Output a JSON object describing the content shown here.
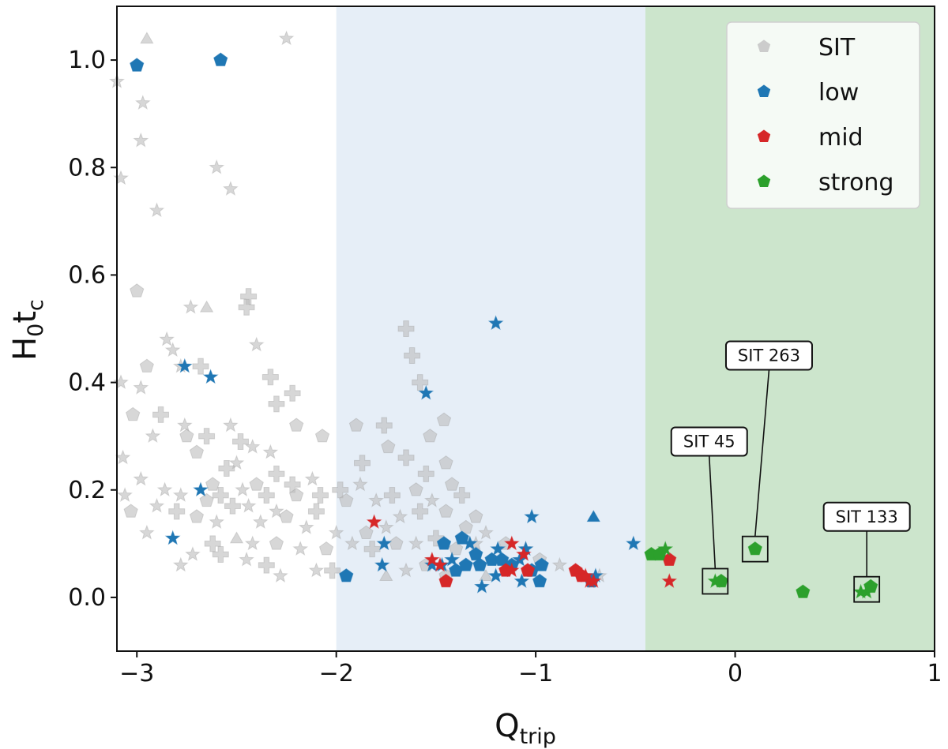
{
  "chart_data": {
    "type": "scatter",
    "xlabel": "Q",
    "xlabel_sub": "trip",
    "ylabel_main": "H",
    "ylabel_sub1": "0",
    "ylabel_mid": "t",
    "ylabel_sub2": "c",
    "xlim": [
      -3.1,
      1.0
    ],
    "ylim": [
      -0.1,
      1.1
    ],
    "x_ticks": [
      -3,
      -2,
      -1,
      0,
      1
    ],
    "x_tick_labels": [
      "−3",
      "−2",
      "−1",
      "0",
      "1"
    ],
    "y_ticks": [
      0.0,
      0.2,
      0.4,
      0.6,
      0.8,
      1.0
    ],
    "y_tick_labels": [
      "0.0",
      "0.2",
      "0.4",
      "0.6",
      "0.8",
      "1.0"
    ],
    "regions": [
      {
        "name": "low-region",
        "x_from": -2.0,
        "x_to": -0.45,
        "color": "#e6eef7"
      },
      {
        "name": "strong-region",
        "x_from": -0.45,
        "x_to": 1.0,
        "color": "#cce5cc"
      }
    ],
    "legend": {
      "position": "top-right",
      "entries": [
        {
          "label": "SIT",
          "color": "#cccccc"
        },
        {
          "label": "low",
          "color": "#1f77b4"
        },
        {
          "label": "mid",
          "color": "#d62728"
        },
        {
          "label": "strong",
          "color": "#2ca02c"
        }
      ]
    },
    "series": [
      {
        "name": "SIT",
        "color": "#bdbdbd",
        "opacity": 0.6,
        "points": [
          [
            -2.95,
            1.04,
            "triangle"
          ],
          [
            -2.25,
            1.04,
            "star"
          ],
          [
            -3.1,
            0.96,
            "star"
          ],
          [
            -2.97,
            0.92,
            "star"
          ],
          [
            -2.98,
            0.85,
            "star"
          ],
          [
            -2.6,
            0.8,
            "star"
          ],
          [
            -3.08,
            0.78,
            "star"
          ],
          [
            -2.53,
            0.76,
            "star"
          ],
          [
            -2.9,
            0.72,
            "star"
          ],
          [
            -3.0,
            0.57,
            "pentagon"
          ],
          [
            -2.65,
            0.54,
            "triangle"
          ],
          [
            -2.73,
            0.54,
            "star"
          ],
          [
            -2.44,
            0.56,
            "plus"
          ],
          [
            -2.45,
            0.54,
            "plus"
          ],
          [
            -2.4,
            0.47,
            "star"
          ],
          [
            -2.85,
            0.48,
            "star"
          ],
          [
            -2.82,
            0.46,
            "star"
          ],
          [
            -2.78,
            0.43,
            "star"
          ],
          [
            -2.95,
            0.43,
            "pentagon"
          ],
          [
            -2.68,
            0.43,
            "plus"
          ],
          [
            -2.33,
            0.41,
            "plus"
          ],
          [
            -3.08,
            0.4,
            "star"
          ],
          [
            -2.98,
            0.39,
            "star"
          ],
          [
            -2.22,
            0.38,
            "plus"
          ],
          [
            -2.3,
            0.36,
            "plus"
          ],
          [
            -3.02,
            0.34,
            "pentagon"
          ],
          [
            -2.88,
            0.34,
            "plus"
          ],
          [
            -2.76,
            0.32,
            "star"
          ],
          [
            -2.75,
            0.3,
            "pentagon"
          ],
          [
            -2.2,
            0.32,
            "pentagon"
          ],
          [
            -2.53,
            0.32,
            "star"
          ],
          [
            -2.65,
            0.3,
            "plus"
          ],
          [
            -2.92,
            0.3,
            "star"
          ],
          [
            -2.48,
            0.29,
            "plus"
          ],
          [
            -2.07,
            0.3,
            "pentagon"
          ],
          [
            -2.42,
            0.28,
            "star"
          ],
          [
            -2.33,
            0.27,
            "star"
          ],
          [
            -2.7,
            0.27,
            "pentagon"
          ],
          [
            -3.07,
            0.26,
            "star"
          ],
          [
            -2.5,
            0.25,
            "star"
          ],
          [
            -2.55,
            0.24,
            "plus"
          ],
          [
            -2.3,
            0.23,
            "plus"
          ],
          [
            -2.12,
            0.22,
            "star"
          ],
          [
            -2.98,
            0.22,
            "star"
          ],
          [
            -2.62,
            0.21,
            "pentagon"
          ],
          [
            -2.4,
            0.21,
            "pentagon"
          ],
          [
            -2.22,
            0.21,
            "plus"
          ],
          [
            -2.86,
            0.2,
            "star"
          ],
          [
            -3.06,
            0.19,
            "star"
          ],
          [
            -2.78,
            0.19,
            "star"
          ],
          [
            -2.58,
            0.19,
            "plus"
          ],
          [
            -2.47,
            0.2,
            "star"
          ],
          [
            -2.35,
            0.19,
            "plus"
          ],
          [
            -2.2,
            0.19,
            "pentagon"
          ],
          [
            -2.08,
            0.19,
            "plus"
          ],
          [
            -2.65,
            0.18,
            "pentagon"
          ],
          [
            -2.52,
            0.17,
            "plus"
          ],
          [
            -2.44,
            0.17,
            "star"
          ],
          [
            -2.3,
            0.16,
            "star"
          ],
          [
            -2.1,
            0.16,
            "plus"
          ],
          [
            -3.03,
            0.16,
            "pentagon"
          ],
          [
            -2.9,
            0.17,
            "star"
          ],
          [
            -2.8,
            0.16,
            "plus"
          ],
          [
            -2.7,
            0.15,
            "pentagon"
          ],
          [
            -2.6,
            0.14,
            "star"
          ],
          [
            -2.38,
            0.14,
            "star"
          ],
          [
            -2.25,
            0.15,
            "pentagon"
          ],
          [
            -2.15,
            0.13,
            "star"
          ],
          [
            -2.0,
            0.12,
            "star"
          ],
          [
            -2.95,
            0.12,
            "star"
          ],
          [
            -2.5,
            0.11,
            "triangle"
          ],
          [
            -2.62,
            0.1,
            "plus"
          ],
          [
            -2.42,
            0.1,
            "star"
          ],
          [
            -2.3,
            0.1,
            "pentagon"
          ],
          [
            -2.18,
            0.09,
            "star"
          ],
          [
            -2.05,
            0.09,
            "pentagon"
          ],
          [
            -2.72,
            0.08,
            "star"
          ],
          [
            -2.58,
            0.08,
            "plus"
          ],
          [
            -2.45,
            0.07,
            "star"
          ],
          [
            -2.35,
            0.06,
            "plus"
          ],
          [
            -2.1,
            0.05,
            "star"
          ],
          [
            -2.02,
            0.05,
            "plus"
          ],
          [
            -2.28,
            0.04,
            "star"
          ],
          [
            -2.78,
            0.06,
            "star"
          ],
          [
            -1.98,
            0.2,
            "plus"
          ],
          [
            -1.88,
            0.21,
            "star"
          ],
          [
            -1.95,
            0.18,
            "pentagon"
          ],
          [
            -1.8,
            0.18,
            "star"
          ],
          [
            -1.72,
            0.19,
            "plus"
          ],
          [
            -1.6,
            0.2,
            "pentagon"
          ],
          [
            -1.52,
            0.18,
            "star"
          ],
          [
            -1.42,
            0.21,
            "pentagon"
          ],
          [
            -1.45,
            0.16,
            "pentagon"
          ],
          [
            -1.58,
            0.16,
            "plus"
          ],
          [
            -1.68,
            0.15,
            "star"
          ],
          [
            -1.75,
            0.13,
            "star"
          ],
          [
            -1.85,
            0.12,
            "pentagon"
          ],
          [
            -1.92,
            0.1,
            "star"
          ],
          [
            -1.82,
            0.09,
            "plus"
          ],
          [
            -1.7,
            0.1,
            "pentagon"
          ],
          [
            -1.6,
            0.1,
            "star"
          ],
          [
            -1.5,
            0.11,
            "plus"
          ],
          [
            -1.4,
            0.09,
            "pentagon"
          ],
          [
            -1.3,
            0.1,
            "star"
          ],
          [
            -1.35,
            0.13,
            "pentagon"
          ],
          [
            -1.25,
            0.12,
            "star"
          ],
          [
            -1.15,
            0.1,
            "pentagon"
          ],
          [
            -1.05,
            0.09,
            "star"
          ],
          [
            -0.98,
            0.07,
            "pentagon"
          ],
          [
            -0.88,
            0.06,
            "star"
          ],
          [
            -1.55,
            0.06,
            "pentagon"
          ],
          [
            -1.65,
            0.05,
            "star"
          ],
          [
            -1.75,
            0.04,
            "triangle"
          ],
          [
            -1.45,
            0.04,
            "pentagon"
          ],
          [
            -1.25,
            0.04,
            "triangle"
          ],
          [
            -1.65,
            0.5,
            "plus"
          ],
          [
            -1.62,
            0.45,
            "plus"
          ],
          [
            -1.58,
            0.4,
            "plus"
          ],
          [
            -1.74,
            0.28,
            "pentagon"
          ],
          [
            -1.53,
            0.3,
            "pentagon"
          ],
          [
            -1.45,
            0.25,
            "pentagon"
          ],
          [
            -1.87,
            0.25,
            "plus"
          ],
          [
            -1.65,
            0.26,
            "plus"
          ],
          [
            -1.9,
            0.32,
            "pentagon"
          ],
          [
            -1.76,
            0.32,
            "plus"
          ],
          [
            -1.46,
            0.33,
            "pentagon"
          ],
          [
            -1.55,
            0.23,
            "plus"
          ],
          [
            -1.3,
            0.15,
            "pentagon"
          ],
          [
            -1.37,
            0.19,
            "plus"
          ],
          [
            -0.72,
            0.03,
            "pentagon"
          ],
          [
            -0.68,
            0.04,
            "star"
          ]
        ]
      },
      {
        "name": "low",
        "color": "#1f77b4",
        "opacity": 1,
        "points": [
          [
            -3.0,
            0.99,
            "pentagon"
          ],
          [
            -2.58,
            1.0,
            "pentagon"
          ],
          [
            -1.2,
            0.51,
            "star"
          ],
          [
            -2.76,
            0.43,
            "star"
          ],
          [
            -2.63,
            0.41,
            "star"
          ],
          [
            -1.55,
            0.38,
            "star"
          ],
          [
            -2.68,
            0.2,
            "star"
          ],
          [
            -2.82,
            0.11,
            "star"
          ],
          [
            -1.02,
            0.15,
            "star"
          ],
          [
            -0.71,
            0.15,
            "triangle"
          ],
          [
            -0.51,
            0.1,
            "star"
          ],
          [
            -1.95,
            0.04,
            "pentagon"
          ],
          [
            -1.76,
            0.1,
            "star"
          ],
          [
            -1.77,
            0.06,
            "star"
          ],
          [
            -1.46,
            0.1,
            "pentagon"
          ],
          [
            -1.37,
            0.11,
            "pentagon"
          ],
          [
            -1.33,
            0.1,
            "star"
          ],
          [
            -1.3,
            0.08,
            "pentagon"
          ],
          [
            -1.42,
            0.07,
            "star"
          ],
          [
            -1.4,
            0.05,
            "pentagon"
          ],
          [
            -1.35,
            0.06,
            "pentagon"
          ],
          [
            -1.28,
            0.06,
            "pentagon"
          ],
          [
            -1.22,
            0.07,
            "pentagon"
          ],
          [
            -1.19,
            0.09,
            "star"
          ],
          [
            -1.17,
            0.07,
            "pentagon"
          ],
          [
            -1.12,
            0.06,
            "pentagon"
          ],
          [
            -1.08,
            0.07,
            "star"
          ],
          [
            -1.05,
            0.09,
            "star"
          ],
          [
            -1.02,
            0.05,
            "pentagon"
          ],
          [
            -0.97,
            0.06,
            "pentagon"
          ],
          [
            -0.98,
            0.03,
            "pentagon"
          ],
          [
            -1.07,
            0.03,
            "star"
          ],
          [
            -1.2,
            0.04,
            "star"
          ],
          [
            -1.27,
            0.02,
            "star"
          ],
          [
            -1.52,
            0.06,
            "star"
          ],
          [
            -1.47,
            0.06,
            "star"
          ],
          [
            -0.72,
            0.03,
            "pentagon"
          ],
          [
            -0.7,
            0.04,
            "star"
          ]
        ]
      },
      {
        "name": "mid",
        "color": "#d62728",
        "opacity": 1,
        "points": [
          [
            -1.81,
            0.14,
            "star"
          ],
          [
            -1.12,
            0.1,
            "star"
          ],
          [
            -1.06,
            0.08,
            "star"
          ],
          [
            -1.52,
            0.07,
            "star"
          ],
          [
            -1.48,
            0.06,
            "star"
          ],
          [
            -1.45,
            0.03,
            "pentagon"
          ],
          [
            -1.15,
            0.05,
            "pentagon"
          ],
          [
            -1.12,
            0.05,
            "star"
          ],
          [
            -1.04,
            0.05,
            "pentagon"
          ],
          [
            -0.8,
            0.05,
            "pentagon"
          ],
          [
            -0.77,
            0.04,
            "pentagon"
          ],
          [
            -0.75,
            0.04,
            "star"
          ],
          [
            -0.73,
            0.03,
            "star"
          ],
          [
            -0.71,
            0.03,
            "star"
          ],
          [
            -0.33,
            0.07,
            "pentagon"
          ],
          [
            -0.33,
            0.03,
            "star"
          ]
        ]
      },
      {
        "name": "strong",
        "color": "#2ca02c",
        "opacity": 1,
        "points": [
          [
            -0.42,
            0.08,
            "pentagon"
          ],
          [
            -0.38,
            0.08,
            "pentagon"
          ],
          [
            -0.35,
            0.09,
            "star"
          ],
          [
            -0.1,
            0.03,
            "star"
          ],
          [
            -0.07,
            0.03,
            "pentagon"
          ],
          [
            0.1,
            0.09,
            "pentagon"
          ],
          [
            0.34,
            0.01,
            "pentagon"
          ],
          [
            0.63,
            0.01,
            "star"
          ],
          [
            0.66,
            0.01,
            "star"
          ],
          [
            0.68,
            0.02,
            "pentagon"
          ]
        ]
      }
    ],
    "annotations": [
      {
        "text": "SIT 45",
        "target": [
          -0.1,
          0.03
        ],
        "label_at": [
          -0.13,
          0.29
        ]
      },
      {
        "text": "SIT 263",
        "target": [
          0.1,
          0.09
        ],
        "label_at": [
          0.17,
          0.45
        ]
      },
      {
        "text": "SIT 133",
        "target": [
          0.66,
          0.015
        ],
        "label_at": [
          0.66,
          0.15
        ]
      }
    ]
  }
}
